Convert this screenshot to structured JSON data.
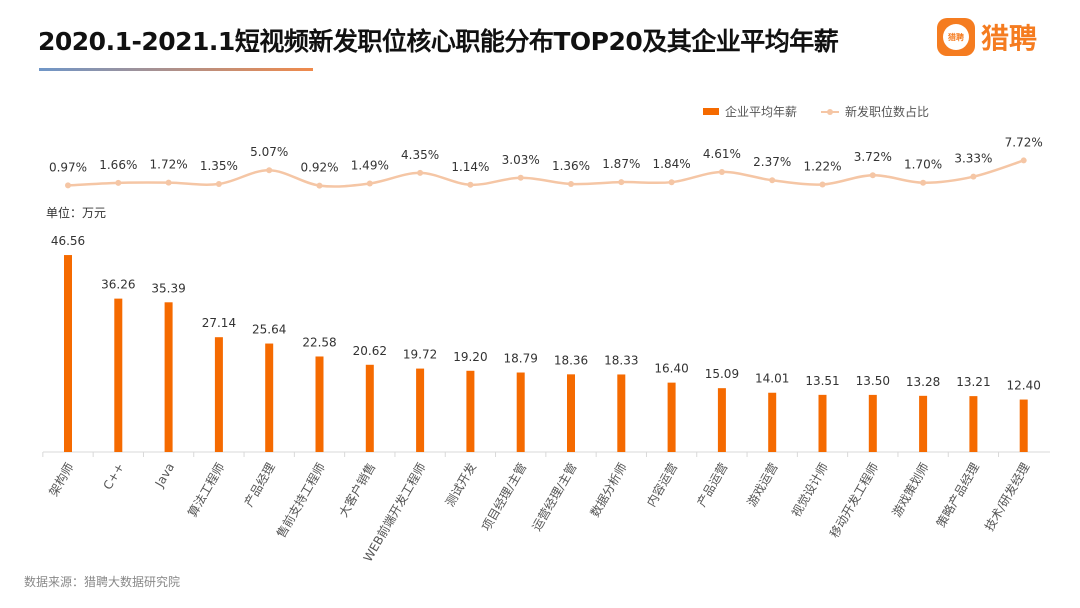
{
  "header": {
    "title": "2020.1-2021.1短视频新发职位核心职能分布TOP20及其企业平均年薪",
    "logo_text": "猎聘",
    "logo_icon_text": "猎聘"
  },
  "unit_label": "单位：万元",
  "source": "数据来源：猎聘大数据研究院",
  "chart_data": {
    "type": "bar+line",
    "categories": [
      "架构师",
      "C++",
      "Java",
      "算法工程师",
      "产品经理",
      "售前支持工程师",
      "大客户销售",
      "WEB前端开发工程师",
      "测试开发",
      "项目经理/主管",
      "运营经理/主管",
      "数据分析师",
      "内容运营",
      "产品运营",
      "游戏运营",
      "视觉设计师",
      "移动开发工程师",
      "游戏策划师",
      "策略产品经理",
      "技术/研发经理"
    ],
    "series": [
      {
        "name": "企业平均年薪",
        "type": "bar",
        "color": "#f56a00",
        "unit": "万元",
        "values": [
          46.56,
          36.26,
          35.39,
          27.14,
          25.64,
          22.58,
          20.62,
          19.72,
          19.2,
          18.79,
          18.36,
          18.33,
          16.4,
          15.09,
          14.01,
          13.51,
          13.5,
          13.28,
          13.21,
          12.4
        ],
        "labels": [
          "46.56",
          "36.26",
          "35.39",
          "27.14",
          "25.64",
          "22.58",
          "20.62",
          "19.72",
          "19.20",
          "18.79",
          "18.36",
          "18.33",
          "16.40",
          "15.09",
          "14.01",
          "13.51",
          "13.50",
          "13.28",
          "13.21",
          "12.40"
        ]
      },
      {
        "name": "新发职位数占比",
        "type": "line",
        "color": "#f5c6a5",
        "unit": "%",
        "values": [
          0.97,
          1.66,
          1.72,
          1.35,
          5.07,
          0.92,
          1.49,
          4.35,
          1.14,
          3.03,
          1.36,
          1.87,
          1.84,
          4.61,
          2.37,
          1.22,
          3.72,
          1.7,
          3.33,
          7.72
        ],
        "labels": [
          "0.97%",
          "1.66%",
          "1.72%",
          "1.35%",
          "5.07%",
          "0.92%",
          "1.49%",
          "4.35%",
          "1.14%",
          "3.03%",
          "1.36%",
          "1.87%",
          "1.84%",
          "4.61%",
          "2.37%",
          "1.22%",
          "3.72%",
          "1.70%",
          "3.33%",
          "7.72%"
        ]
      }
    ],
    "legend_position": "top-right",
    "grid": false
  }
}
